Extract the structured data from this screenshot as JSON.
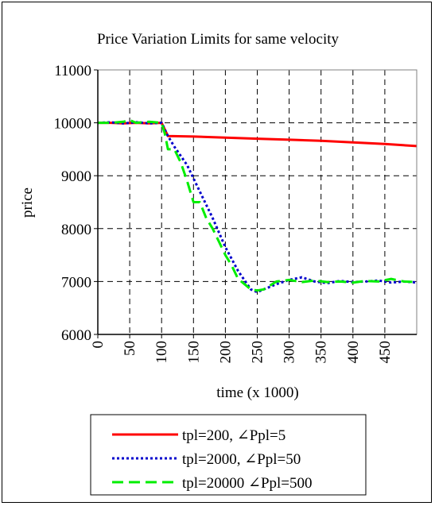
{
  "chart_data": {
    "type": "line",
    "title": "Price Variation Limits for same velocity",
    "xlabel": "time (x 1000)",
    "ylabel": "price",
    "xlim": [
      0,
      500
    ],
    "ylim": [
      6000,
      11000
    ],
    "x_ticks": [
      "0",
      "50",
      "100",
      "150",
      "200",
      "250",
      "300",
      "350",
      "400",
      "450"
    ],
    "y_ticks": [
      "6000",
      "7000",
      "8000",
      "9000",
      "10000",
      "11000"
    ],
    "grid": true,
    "legend_position": "bottom",
    "series": [
      {
        "name": "tpl=200, ∠Ppl=5",
        "color": "#ff0000",
        "dash": "solid",
        "x": [
          0,
          20,
          40,
          60,
          80,
          100,
          110,
          150,
          200,
          250,
          300,
          350,
          400,
          450,
          500
        ],
        "y": [
          10000,
          10000,
          9990,
          10000,
          9990,
          10000,
          9750,
          9740,
          9720,
          9700,
          9680,
          9660,
          9630,
          9600,
          9560
        ]
      },
      {
        "name": "tpl=2000, ∠Ppl=50",
        "color": "#0000cc",
        "dash": "dotted",
        "x": [
          0,
          20,
          40,
          60,
          80,
          100,
          110,
          120,
          140,
          160,
          180,
          200,
          220,
          240,
          250,
          260,
          280,
          300,
          320,
          340,
          360,
          380,
          400,
          420,
          440,
          460,
          480,
          500
        ],
        "y": [
          10000,
          10010,
          9990,
          10010,
          9990,
          10000,
          9750,
          9550,
          9200,
          8700,
          8200,
          7650,
          7200,
          6850,
          6800,
          6850,
          6950,
          7030,
          7080,
          7000,
          6970,
          7010,
          6990,
          7000,
          7020,
          6980,
          7000,
          6980
        ]
      },
      {
        "name": "tpl=20000 ∠Ppl=500",
        "color": "#00ee00",
        "dash": "dashed",
        "x": [
          0,
          20,
          40,
          50,
          60,
          80,
          100,
          105,
          110,
          120,
          130,
          140,
          150,
          160,
          170,
          180,
          190,
          200,
          210,
          220,
          230,
          240,
          250,
          260,
          280,
          300,
          320,
          340,
          360,
          380,
          400,
          420,
          440,
          460,
          480,
          500
        ],
        "y": [
          10000,
          10000,
          10020,
          10050,
          10000,
          10020,
          10000,
          9800,
          9500,
          9500,
          9250,
          8900,
          8500,
          8500,
          8200,
          8000,
          7750,
          7500,
          7300,
          7050,
          6950,
          6850,
          6830,
          6850,
          7000,
          7030,
          6990,
          7020,
          6990,
          7000,
          6980,
          7010,
          7000,
          7050,
          7000,
          6990
        ]
      }
    ]
  }
}
